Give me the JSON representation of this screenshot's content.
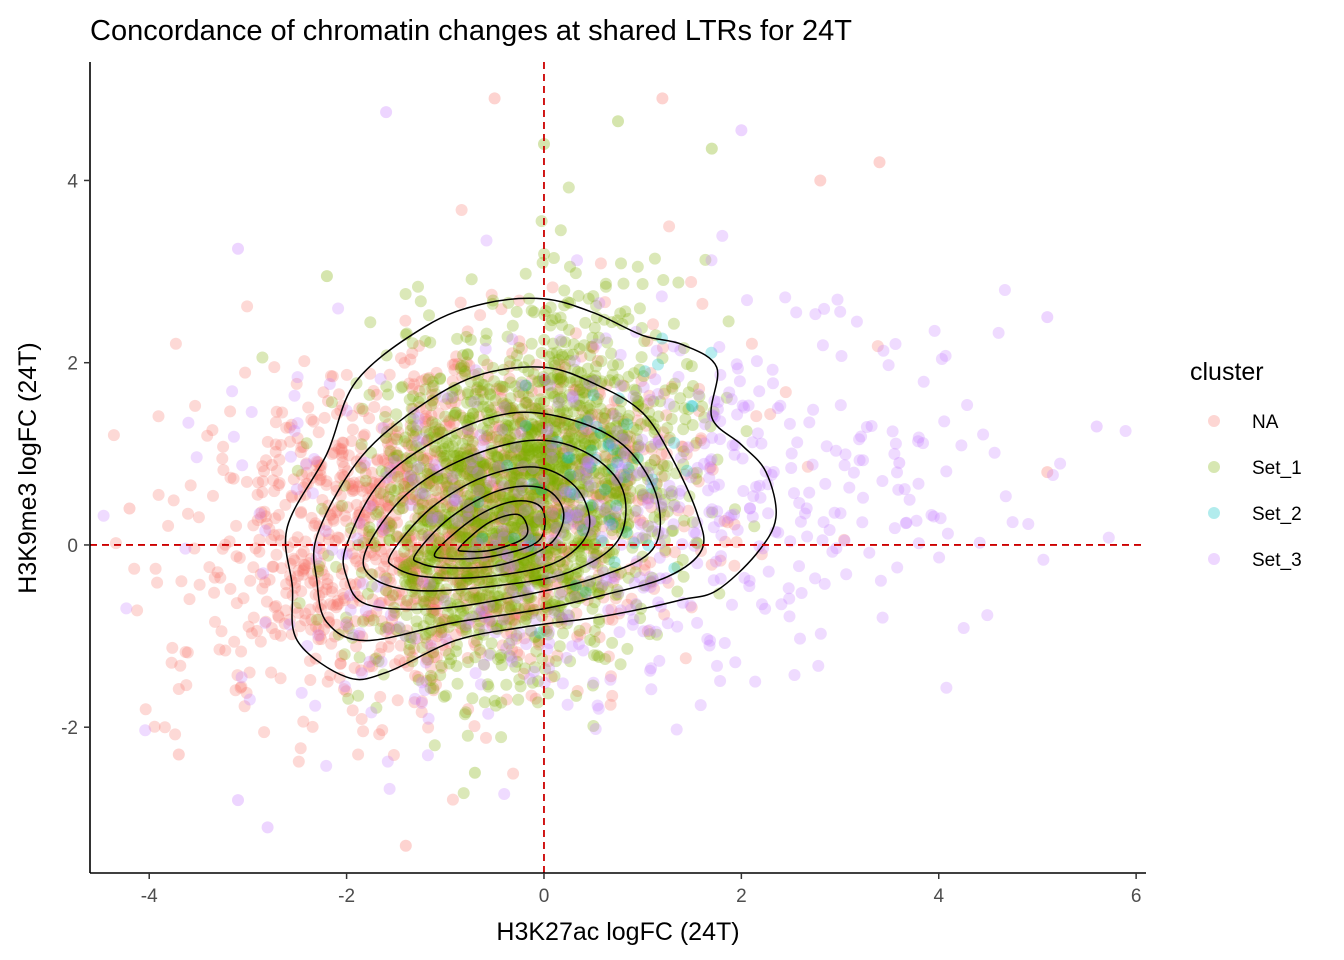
{
  "chart_data": {
    "type": "scatter",
    "title": "Concordance of chromatin changes at shared LTRs for 24T",
    "xlabel": "H3K27ac logFC (24T)",
    "ylabel": "H3K9me3 logFC (24T)",
    "xlim": [
      -4.6,
      6.1
    ],
    "ylim": [
      -3.6,
      5.3
    ],
    "xticks": [
      -4,
      -2,
      0,
      2,
      4,
      6
    ],
    "yticks": [
      -2,
      0,
      2,
      4
    ],
    "reference_lines": {
      "x": 0,
      "y": 0,
      "style": "dashed",
      "color": "#cc0000"
    },
    "grid": false,
    "legend": {
      "title": "cluster",
      "position": "right",
      "entries": [
        {
          "label": "NA",
          "color": "#F8766D"
        },
        {
          "label": "Set_1",
          "color": "#7CAE00"
        },
        {
          "label": "Set_2",
          "color": "#00BFC4"
        },
        {
          "label": "Set_3",
          "color": "#C77CFF"
        }
      ]
    },
    "series": [
      {
        "name": "NA",
        "color": "#F8766D",
        "center": [
          -1.0,
          0.2
        ],
        "spread": [
          1.2,
          0.95
        ],
        "n": 1500,
        "outliers": [
          [
            -0.5,
            4.9
          ],
          [
            -4.2,
            0.4
          ],
          [
            -3.7,
            -2.3
          ],
          [
            -1.4,
            -3.3
          ],
          [
            5.1,
            0.8
          ],
          [
            2.8,
            4.0
          ],
          [
            1.2,
            4.9
          ],
          [
            3.4,
            4.2
          ]
        ]
      },
      {
        "name": "Set_1",
        "color": "#7CAE00",
        "center": [
          -0.2,
          0.55
        ],
        "spread": [
          0.75,
          0.95
        ],
        "n": 1900,
        "outliers": [
          [
            0.75,
            4.65
          ],
          [
            1.7,
            4.35
          ],
          [
            -2.2,
            2.95
          ],
          [
            -0.7,
            -2.5
          ],
          [
            0.0,
            4.4
          ]
        ]
      },
      {
        "name": "Set_2",
        "color": "#00BFC4",
        "center": [
          0.6,
          0.6
        ],
        "spread": [
          0.55,
          0.6
        ],
        "n": 60,
        "outliers": []
      },
      {
        "name": "Set_3",
        "color": "#C77CFF",
        "center": [
          0.8,
          0.3
        ],
        "spread": [
          1.9,
          1.05
        ],
        "n": 600,
        "outliers": [
          [
            -1.6,
            4.75
          ],
          [
            2.0,
            4.55
          ],
          [
            5.6,
            1.3
          ],
          [
            -3.1,
            3.25
          ],
          [
            -3.1,
            -2.8
          ],
          [
            -2.8,
            -3.1
          ],
          [
            3.6,
            0.9
          ],
          [
            5.1,
            2.5
          ]
        ]
      }
    ],
    "density_contours": [
      [
        [
          -2.6,
          0.2
        ],
        [
          -2.2,
          1.0
        ],
        [
          -1.9,
          1.8
        ],
        [
          -1.2,
          2.4
        ],
        [
          -0.6,
          2.65
        ],
        [
          0.0,
          2.7
        ],
        [
          0.5,
          2.55
        ],
        [
          1.0,
          2.3
        ],
        [
          1.4,
          2.2
        ],
        [
          1.75,
          1.95
        ],
        [
          1.7,
          1.4
        ],
        [
          2.0,
          1.1
        ],
        [
          2.25,
          0.8
        ],
        [
          2.35,
          0.3
        ],
        [
          2.15,
          -0.1
        ],
        [
          1.75,
          -0.5
        ],
        [
          1.4,
          -0.6
        ],
        [
          1.0,
          -0.7
        ],
        [
          0.5,
          -0.8
        ],
        [
          -0.2,
          -0.9
        ],
        [
          -0.9,
          -1.05
        ],
        [
          -1.6,
          -1.4
        ],
        [
          -2.0,
          -1.45
        ],
        [
          -2.5,
          -1.05
        ],
        [
          -2.55,
          -0.45
        ]
      ],
      [
        [
          -2.3,
          0.1
        ],
        [
          -1.9,
          0.9
        ],
        [
          -1.35,
          1.45
        ],
        [
          -0.7,
          1.85
        ],
        [
          0.0,
          1.95
        ],
        [
          0.55,
          1.75
        ],
        [
          1.0,
          1.45
        ],
        [
          1.3,
          0.95
        ],
        [
          1.55,
          0.35
        ],
        [
          1.6,
          -0.05
        ],
        [
          1.25,
          -0.35
        ],
        [
          0.6,
          -0.55
        ],
        [
          0.0,
          -0.7
        ],
        [
          -0.9,
          -0.85
        ],
        [
          -1.8,
          -1.05
        ],
        [
          -2.2,
          -0.85
        ],
        [
          -2.3,
          -0.4
        ]
      ],
      [
        [
          -2.0,
          0.0
        ],
        [
          -1.65,
          0.7
        ],
        [
          -1.0,
          1.2
        ],
        [
          -0.3,
          1.45
        ],
        [
          0.35,
          1.35
        ],
        [
          0.85,
          1.05
        ],
        [
          1.15,
          0.5
        ],
        [
          1.1,
          -0.05
        ],
        [
          0.55,
          -0.35
        ],
        [
          -0.2,
          -0.55
        ],
        [
          -1.1,
          -0.7
        ],
        [
          -1.8,
          -0.65
        ],
        [
          -2.0,
          -0.35
        ]
      ],
      [
        [
          -1.8,
          -0.05
        ],
        [
          -1.4,
          0.55
        ],
        [
          -0.8,
          0.95
        ],
        [
          -0.1,
          1.15
        ],
        [
          0.45,
          1.0
        ],
        [
          0.8,
          0.6
        ],
        [
          0.75,
          0.05
        ],
        [
          0.25,
          -0.3
        ],
        [
          -0.5,
          -0.45
        ],
        [
          -1.3,
          -0.5
        ],
        [
          -1.75,
          -0.35
        ]
      ],
      [
        [
          -1.55,
          -0.1
        ],
        [
          -1.15,
          0.4
        ],
        [
          -0.6,
          0.75
        ],
        [
          -0.05,
          0.85
        ],
        [
          0.35,
          0.6
        ],
        [
          0.45,
          0.15
        ],
        [
          0.1,
          -0.2
        ],
        [
          -0.6,
          -0.35
        ],
        [
          -1.2,
          -0.35
        ],
        [
          -1.5,
          -0.25
        ]
      ],
      [
        [
          -1.3,
          -0.1
        ],
        [
          -0.95,
          0.3
        ],
        [
          -0.45,
          0.6
        ],
        [
          0.0,
          0.62
        ],
        [
          0.2,
          0.35
        ],
        [
          0.05,
          0.0
        ],
        [
          -0.45,
          -0.22
        ],
        [
          -1.0,
          -0.25
        ],
        [
          -1.25,
          -0.2
        ]
      ],
      [
        [
          -1.1,
          -0.08
        ],
        [
          -0.7,
          0.3
        ],
        [
          -0.3,
          0.48
        ],
        [
          -0.02,
          0.4
        ],
        [
          -0.05,
          0.05
        ],
        [
          -0.5,
          -0.12
        ],
        [
          -0.95,
          -0.15
        ]
      ],
      [
        [
          -0.85,
          -0.02
        ],
        [
          -0.55,
          0.25
        ],
        [
          -0.25,
          0.33
        ],
        [
          -0.18,
          0.1
        ],
        [
          -0.5,
          -0.05
        ],
        [
          -0.8,
          -0.07
        ]
      ]
    ]
  }
}
